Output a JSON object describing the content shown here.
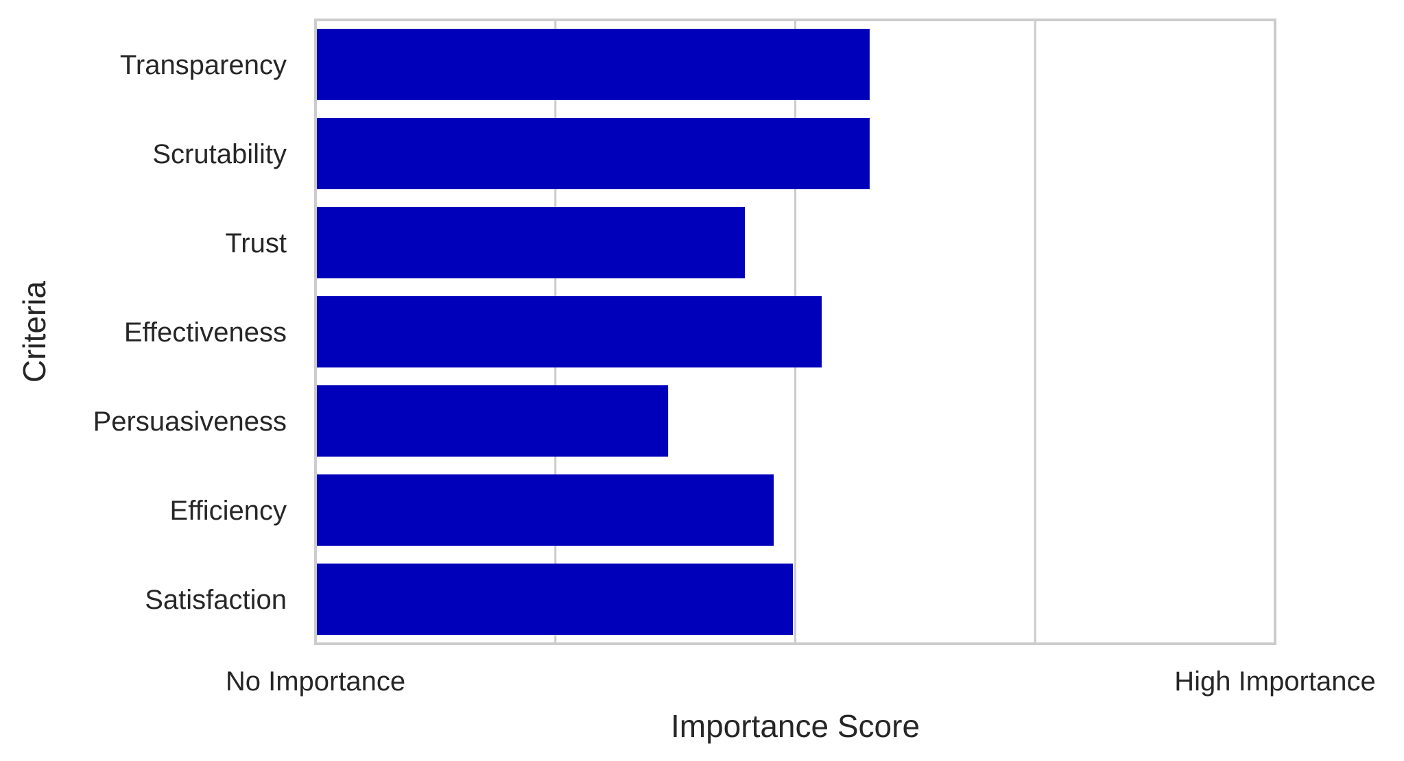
{
  "chart_data": {
    "type": "bar",
    "orientation": "horizontal",
    "categories": [
      "Transparency",
      "Scrutability",
      "Trust",
      "Effectiveness",
      "Persuasiveness",
      "Efficiency",
      "Satisfaction"
    ],
    "values": [
      2.31,
      2.31,
      1.79,
      2.11,
      1.47,
      1.91,
      1.99
    ],
    "xlim": [
      0,
      4
    ],
    "x_ticks": [
      {
        "value": 0,
        "label": "No Importance"
      },
      {
        "value": 4,
        "label": "High Importance"
      }
    ],
    "xlabel": "Importance Score",
    "ylabel": "Criteria",
    "grid": true,
    "colors": {
      "bar": "#0000bb",
      "grid": "#cccccc",
      "frame": "#cccccc",
      "text": "#262626"
    }
  }
}
